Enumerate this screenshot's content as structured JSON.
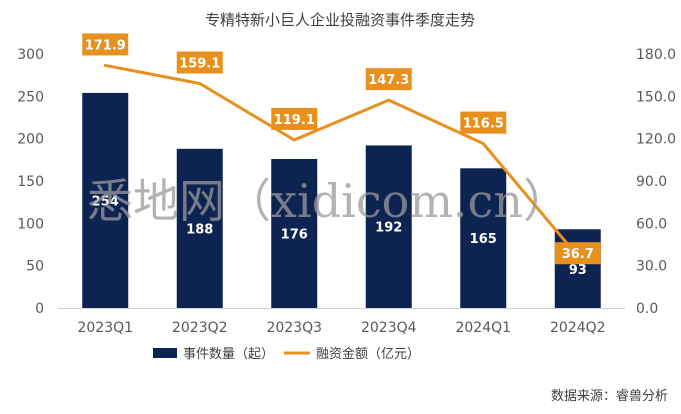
{
  "chart_data": {
    "type": "bar+line",
    "title": "专精特新小巨人企业投融资事件季度走势",
    "categories": [
      "2023Q1",
      "2023Q2",
      "2023Q3",
      "2023Q4",
      "2024Q1",
      "2024Q2"
    ],
    "series": [
      {
        "name": "事件数量（起）",
        "type": "bar",
        "axis": "left",
        "color": "#0d2352",
        "values": [
          254,
          188,
          176,
          192,
          165,
          93
        ]
      },
      {
        "name": "融资金额（亿元）",
        "type": "line",
        "axis": "right",
        "color": "#e8901e",
        "values": [
          171.9,
          159.1,
          119.1,
          147.3,
          116.5,
          36.7
        ]
      }
    ],
    "y_left": {
      "min": 0,
      "max": 300,
      "ticks": [
        "0",
        "50",
        "100",
        "150",
        "200",
        "250",
        "300"
      ]
    },
    "y_right": {
      "min": 0,
      "max": 180,
      "ticks": [
        "0.0",
        "30.0",
        "60.0",
        "90.0",
        "120.0",
        "150.0",
        "180.0"
      ]
    },
    "bar_labels": [
      "254",
      "188",
      "176",
      "192",
      "165",
      "93"
    ],
    "line_labels": [
      "171.9",
      "159.1",
      "119.1",
      "147.3",
      "116.5",
      "36.7"
    ],
    "grid": false,
    "legend_position": "bottom"
  },
  "watermark": "悉地网（xidicom.cn）",
  "source": "数据来源：睿兽分析"
}
